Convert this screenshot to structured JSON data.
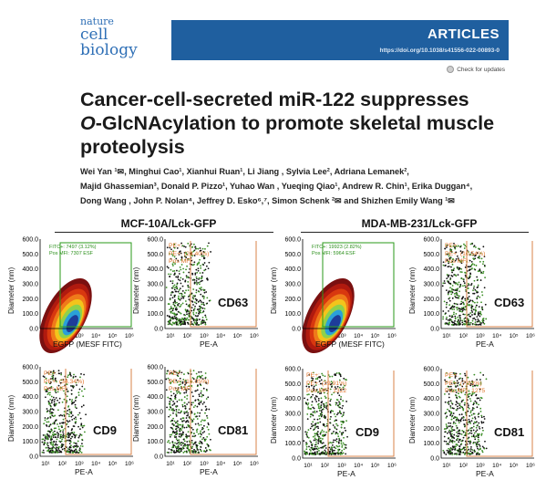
{
  "header": {
    "journal_line1": "nature",
    "journal_line2": "cell biology",
    "article_type": "ARTICLES",
    "doi": "https://doi.org/10.1038/s41556-022-00893-0",
    "updates": "Check for updates",
    "brand_color": "#1f5f9f"
  },
  "paper": {
    "title_line1": "Cancer-cell-secreted miR-122 suppresses",
    "title_line2_italic": "O",
    "title_line2_rest": "-GlcNAcylation to promote skeletal muscle",
    "title_line3": "proteolysis",
    "authors_line1": "Wei Yan ¹✉, Minghui Cao¹, Xianhui Ruan¹, Li Jiang , Sylvia Lee², Adriana Lemanek²,",
    "authors_line2": "Majid Ghassemian³, Donald P. Pizzo¹, Yuhao Wan , Yueqing Qiao¹, Andrew R. Chin¹, Erika Duggan⁴,",
    "authors_line3": "Dong Wang , John P. Nolan⁴, Jeffrey D. Esko⁶,⁷, Simon Schenk ²✉ and Shizhen Emily Wang ¹✉"
  },
  "figure": {
    "groups": [
      "MCF-10A/Lck-GFP",
      "MDA-MB-231/Lck-GFP"
    ],
    "ytick_labels": [
      "600.0",
      "500.0",
      "400.0",
      "300.0",
      "200.0",
      "100.0",
      "0.0"
    ],
    "y_label": "Diameter (nm)",
    "x_label_egfp": "EGFP (MESF FITC)",
    "x_label_pe": "PE-A",
    "xtick_labels": [
      "10¹",
      "10²",
      "10³",
      "10⁴",
      "10⁵",
      "10⁶"
    ],
    "panels": {
      "mcf_egfp": {
        "line1": "FITC+: 7497 (3.12%)",
        "line2": "Pos MFI: 7307 ESF"
      },
      "mcf_cd63": {
        "marker": "CD63",
        "ann": [
          "PE+:",
          "PE+: (24.40%)",
          "Pos MFI:"
        ]
      },
      "mcf_cd9": {
        "marker": "CD9",
        "ann": [
          "PE+:",
          "PE+: (34.34%)",
          "Pos MFI:"
        ]
      },
      "mcf_cd81": {
        "marker": "CD81",
        "ann": [
          "PE+:",
          "PE+: (16.05%)",
          "Pos MFI:"
        ]
      },
      "mda_egfp": {
        "line1": "FITC+: 19923 (2.82%)",
        "line2": "Pos MFI: 5964 ESF"
      },
      "mda_cd63": {
        "marker": "CD63",
        "ann": [
          "PE+:",
          "PE+: (10.54%)",
          "Pos MFI:"
        ]
      },
      "mda_cd9": {
        "marker": "CD9",
        "ann": [
          "PE+:",
          "PE+: (29.91%)",
          "Pos MFI: 1322"
        ]
      },
      "mda_cd81": {
        "marker": "CD81",
        "ann": [
          "PE+:",
          "PE+: (7.93%)",
          "Pos MFI: 1275"
        ]
      }
    }
  }
}
